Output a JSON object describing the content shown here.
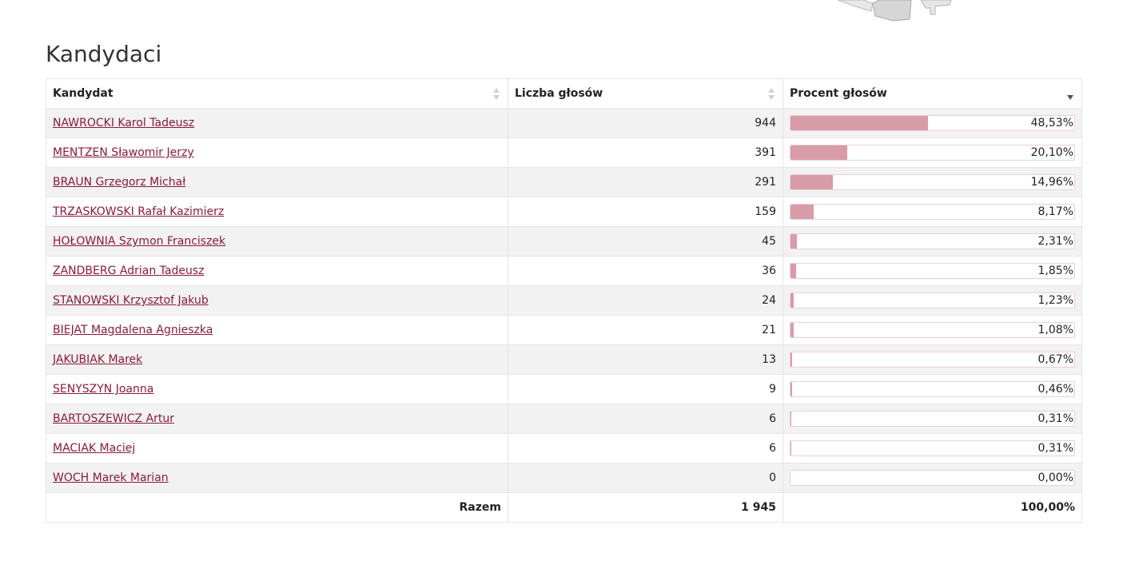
{
  "section_title": "Kandydaci",
  "columns": {
    "candidate": "Kandydat",
    "votes": "Liczba głosów",
    "percent": "Procent głosów"
  },
  "bar_color": "#d99ca9",
  "link_color": "#8b1a3a",
  "rows": [
    {
      "name": "NAWROCKI Karol Tadeusz",
      "votes": "944",
      "percent": "48,53%",
      "share": 48.53
    },
    {
      "name": "MENTZEN Sławomir Jerzy",
      "votes": "391",
      "percent": "20,10%",
      "share": 20.1
    },
    {
      "name": "BRAUN Grzegorz Michał",
      "votes": "291",
      "percent": "14,96%",
      "share": 14.96
    },
    {
      "name": "TRZASKOWSKI Rafał Kazimierz",
      "votes": "159",
      "percent": "8,17%",
      "share": 8.17
    },
    {
      "name": "HOŁOWNIA Szymon Franciszek",
      "votes": "45",
      "percent": "2,31%",
      "share": 2.31
    },
    {
      "name": "ZANDBERG Adrian Tadeusz",
      "votes": "36",
      "percent": "1,85%",
      "share": 1.85
    },
    {
      "name": "STANOWSKI Krzysztof Jakub",
      "votes": "24",
      "percent": "1,23%",
      "share": 1.23
    },
    {
      "name": "BIEJAT Magdalena Agnieszka",
      "votes": "21",
      "percent": "1,08%",
      "share": 1.08
    },
    {
      "name": "JAKUBIAK Marek",
      "votes": "13",
      "percent": "0,67%",
      "share": 0.67
    },
    {
      "name": "SENYSZYN Joanna",
      "votes": "9",
      "percent": "0,46%",
      "share": 0.46
    },
    {
      "name": "BARTOSZEWICZ Artur",
      "votes": "6",
      "percent": "0,31%",
      "share": 0.31
    },
    {
      "name": "MACIAK Maciej",
      "votes": "6",
      "percent": "0,31%",
      "share": 0.31
    },
    {
      "name": "WOCH Marek Marian",
      "votes": "0",
      "percent": "0,00%",
      "share": 0.0
    }
  ],
  "total": {
    "label": "Razem",
    "votes": "1 945",
    "percent": "100,00%"
  }
}
